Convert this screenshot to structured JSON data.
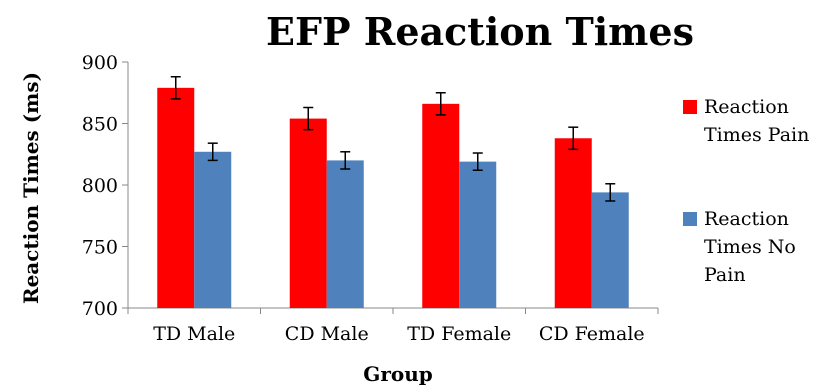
{
  "chart_data": {
    "type": "bar",
    "title": "EFP Reaction Times",
    "xlabel": "Group",
    "ylabel": "Reaction Times  (ms)",
    "categories": [
      "TD Male",
      "CD Male",
      "TD Female",
      "CD Female"
    ],
    "ylim": [
      700,
      900
    ],
    "yticks": [
      700,
      750,
      800,
      850,
      900
    ],
    "grid": false,
    "legend_position": "right",
    "series": [
      {
        "name": "Reaction Times Pain",
        "legend_lines": [
          "Reaction",
          "Times Pain"
        ],
        "color": "#ff0000",
        "values": [
          879,
          854,
          866,
          838
        ],
        "errors": [
          9,
          9,
          9,
          9
        ]
      },
      {
        "name": "Reaction Times No Pain",
        "legend_lines": [
          "Reaction",
          "Times No",
          "Pain"
        ],
        "color": "#4f81bd",
        "values": [
          827,
          820,
          819,
          794
        ],
        "errors": [
          7,
          7,
          7,
          7
        ]
      }
    ]
  }
}
